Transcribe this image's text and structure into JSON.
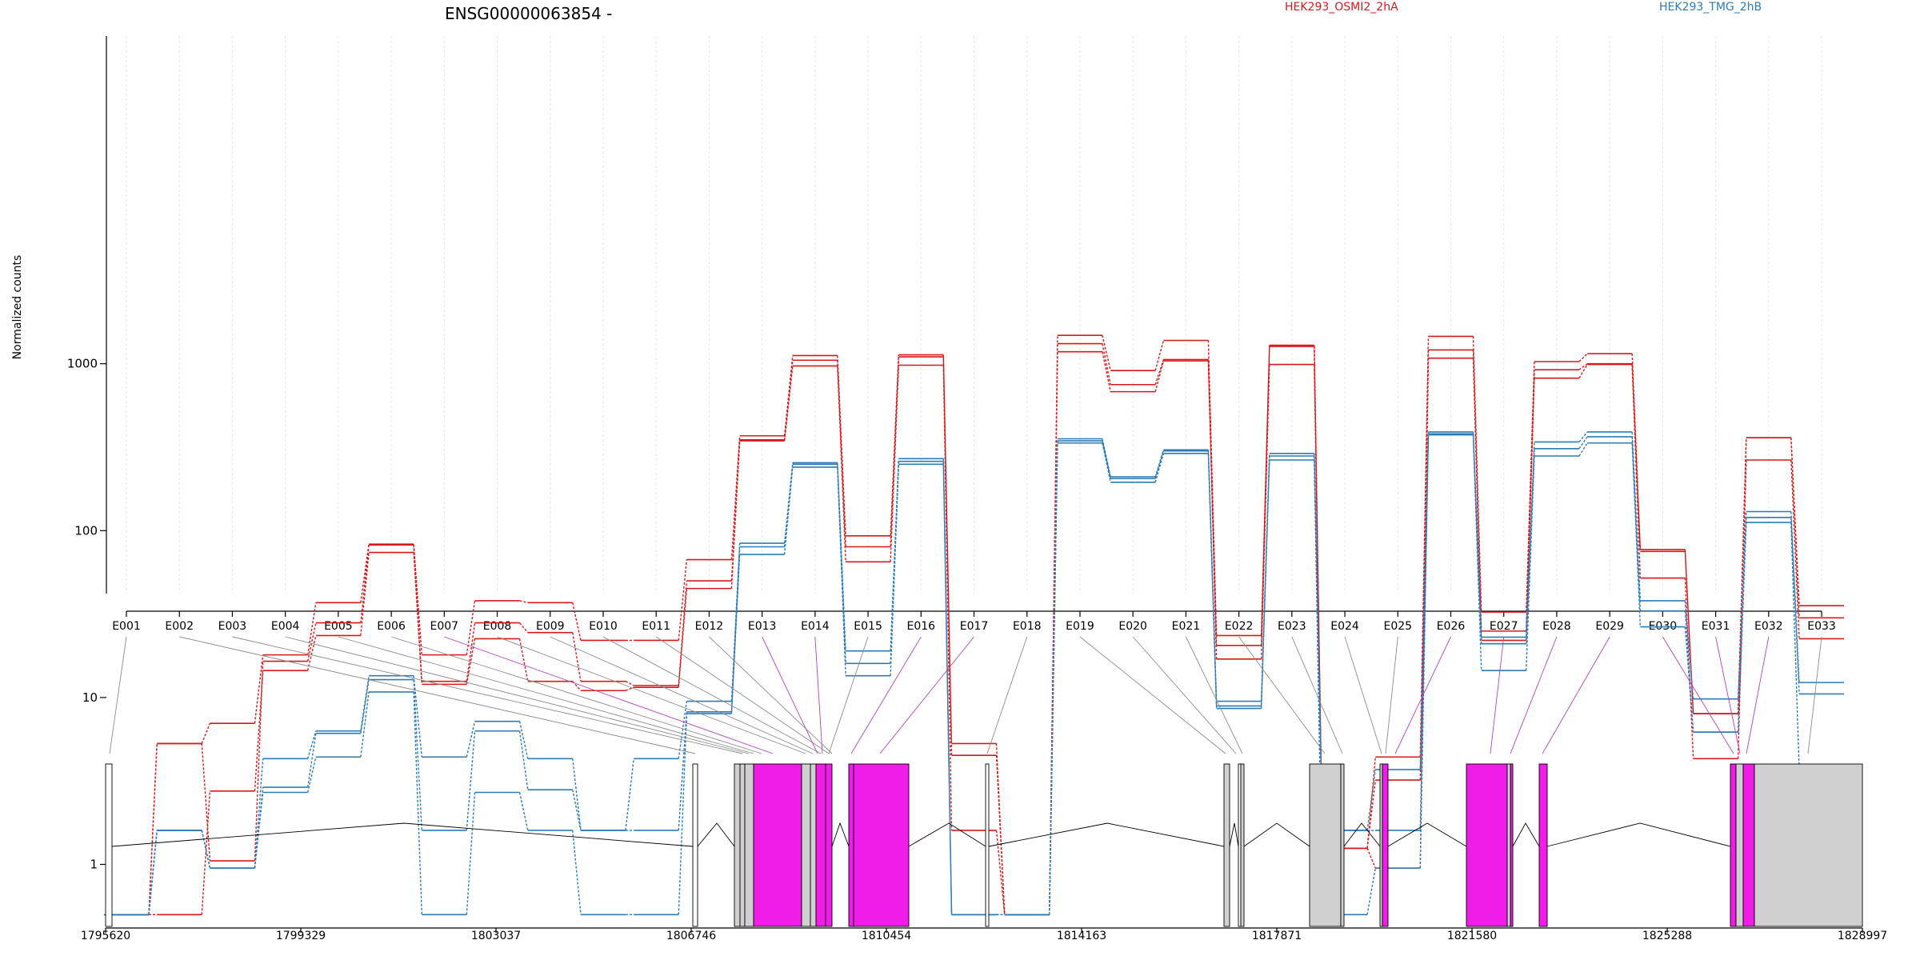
{
  "chart_data": {
    "type": "line",
    "title": "ENSG00000063854 -",
    "ylabel": "Normalized counts",
    "y_scale": "log",
    "y_ticks": [
      "1",
      "10",
      "100",
      "1000"
    ],
    "categories": [
      "E001",
      "E002",
      "E003",
      "E004",
      "E005",
      "E006",
      "E007",
      "E008",
      "E009",
      "E010",
      "E011",
      "E012",
      "E013",
      "E014",
      "E015",
      "E016",
      "E017",
      "E018",
      "E019",
      "E020",
      "E021",
      "E022",
      "E023",
      "E024",
      "E025",
      "E026",
      "E027",
      "E028",
      "E029",
      "E030",
      "E031",
      "E032",
      "E033"
    ],
    "groups": [
      {
        "name": "HEK293_OSMI2_2hA",
        "color": "#d7191c"
      },
      {
        "name": "HEK293_TMG_2hB",
        "color": "#2c7bb6"
      }
    ],
    "series": [
      {
        "group": 0,
        "values": [
          0.5,
          5.3,
          7,
          18,
          37,
          83,
          18,
          38,
          37,
          22,
          22,
          67,
          370,
          1120,
          93,
          1130,
          5.3,
          0.5,
          1480,
          910,
          1380,
          23.5,
          1290,
          1.25,
          4.4,
          1460,
          32.5,
          1030,
          1150,
          77,
          8,
          360,
          35.5
        ]
      },
      {
        "group": 0,
        "values": [
          0.5,
          5.3,
          1.05,
          16.5,
          28,
          82,
          12.5,
          28,
          24.5,
          12.5,
          11.8,
          50,
          350,
          1050,
          80,
          1100,
          4.5,
          0.5,
          1320,
          750,
          1060,
          20.5,
          1270,
          1.25,
          3.2,
          1210,
          25,
          920,
          1000,
          75,
          8,
          360,
          30
        ]
      },
      {
        "group": 0,
        "values": [
          0.5,
          0.5,
          2.75,
          14.5,
          23.5,
          74,
          12,
          22.5,
          12.5,
          11,
          11.5,
          45,
          345,
          970,
          65,
          980,
          1.6,
          0.5,
          1180,
          680,
          1040,
          17,
          990,
          1.25,
          0.95,
          1080,
          22,
          820,
          990,
          52,
          4.3,
          265,
          22.5
        ]
      },
      {
        "group": 1,
        "values": [
          0.5,
          1.6,
          0.95,
          4.3,
          6.3,
          13.5,
          4.4,
          7.2,
          4.3,
          1.6,
          4.3,
          9.5,
          84,
          255,
          19,
          270,
          0.5,
          0.5,
          355,
          210,
          305,
          9.5,
          290,
          1.6,
          3.7,
          390,
          23,
          340,
          390,
          38,
          9.8,
          130,
          12.3
        ]
      },
      {
        "group": 1,
        "values": [
          0.5,
          1.6,
          0.95,
          2.9,
          6.1,
          12.8,
          1.6,
          6.3,
          2.8,
          1.6,
          1.6,
          8.2,
          80,
          250,
          16,
          260,
          0.5,
          0.5,
          345,
          205,
          300,
          8.9,
          280,
          1.6,
          1.6,
          380,
          21,
          310,
          365,
          33,
          6.2,
          120,
          10.5
        ]
      },
      {
        "group": 1,
        "values": [
          0.5,
          1.6,
          0.95,
          2.7,
          4.4,
          10.8,
          0.5,
          2.7,
          1.6,
          0.5,
          0.5,
          8,
          72,
          240,
          13.5,
          250,
          0.5,
          0.5,
          335,
          195,
          290,
          8.6,
          265,
          0.5,
          0.95,
          375,
          14.5,
          280,
          335,
          26.5,
          6.2,
          112,
          3.7
        ]
      }
    ],
    "gene_model": {
      "coordinate_ticks": [
        "1795620",
        "1799329",
        "1803037",
        "1806746",
        "1810454",
        "1814163",
        "1817871",
        "1821580",
        "1825288",
        "1828997"
      ],
      "range": [
        1795620,
        1828997
      ],
      "exon_colors": {
        "not_significant": "#d0d0d0",
        "significant": "#f01ce8"
      }
    }
  }
}
